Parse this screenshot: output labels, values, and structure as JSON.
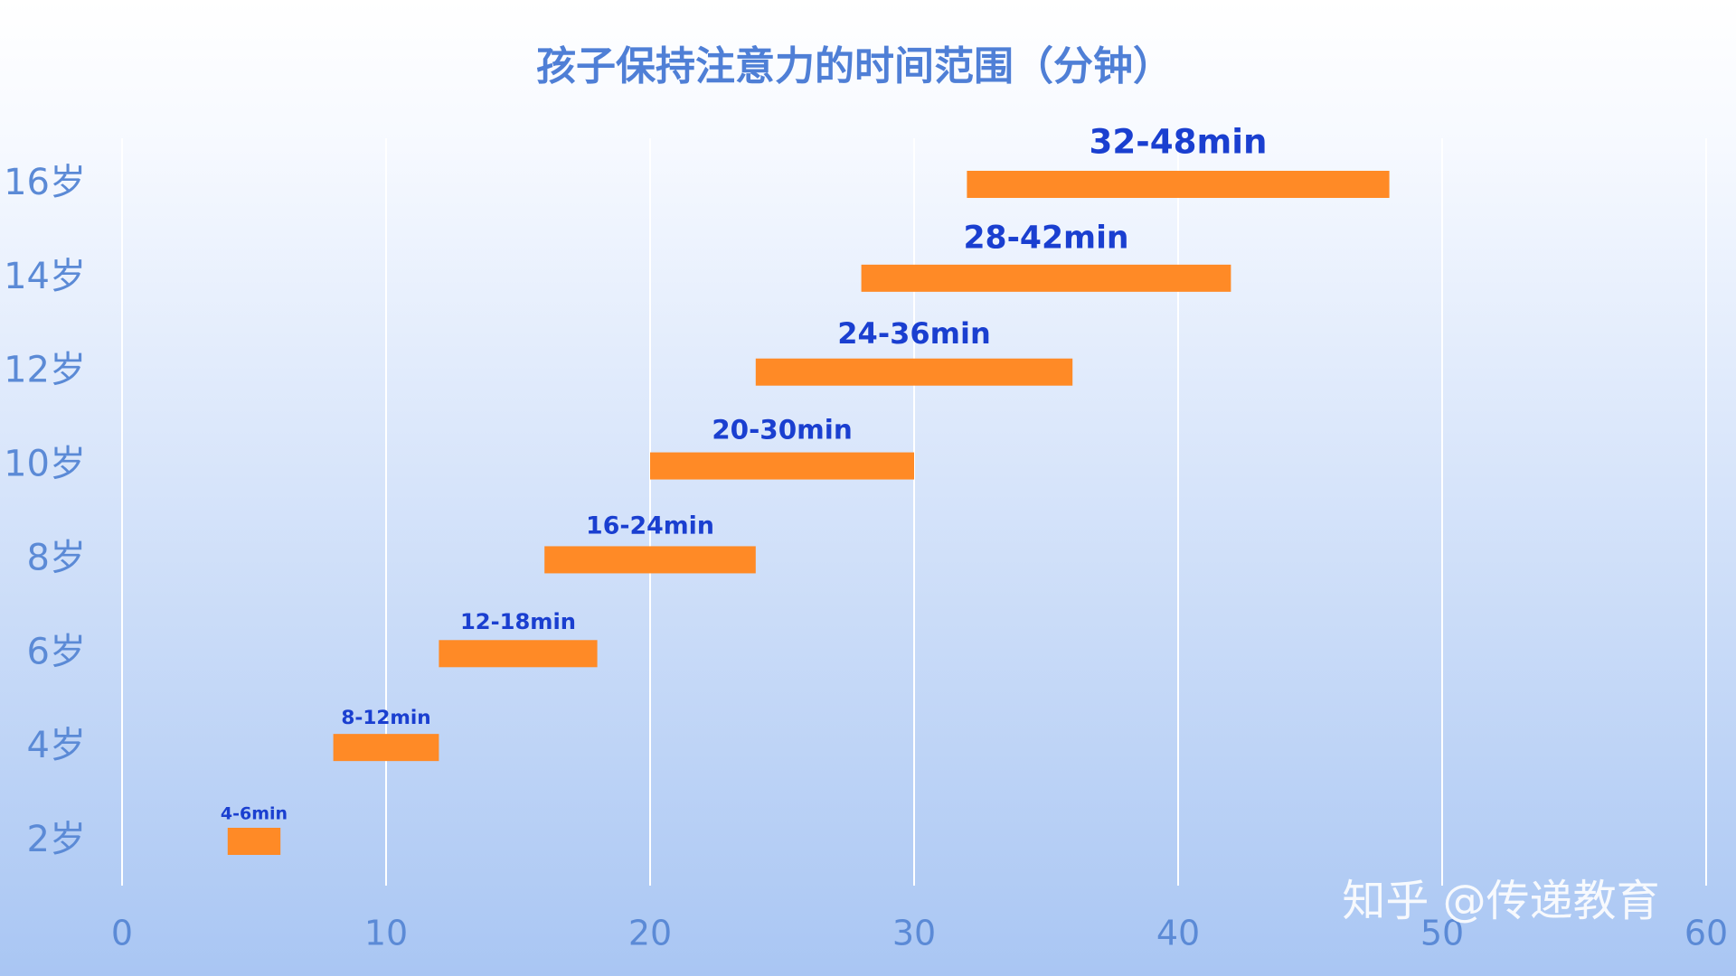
{
  "chart_data": {
    "type": "floating-bar",
    "title": "孩子保持注意力的时间范围（分钟）",
    "categories": [
      "2岁",
      "4岁",
      "6岁",
      "8岁",
      "10岁",
      "12岁",
      "14岁",
      "16岁"
    ],
    "values": [
      [
        4,
        6
      ],
      [
        8,
        12
      ],
      [
        12,
        18
      ],
      [
        16,
        24
      ],
      [
        20,
        30
      ],
      [
        24,
        36
      ],
      [
        28,
        42
      ],
      [
        32,
        48
      ]
    ],
    "value_labels": [
      "4-6min",
      "8-12min",
      "12-18min",
      "16-24min",
      "20-30min",
      "24-36min",
      "28-42min",
      "32-48min"
    ],
    "color": "#ff8a26",
    "xlim": [
      0,
      60
    ],
    "xticks": [
      0,
      10,
      20,
      30,
      40,
      50,
      60
    ],
    "grid": true
  },
  "watermark": "知乎 @传递教育"
}
